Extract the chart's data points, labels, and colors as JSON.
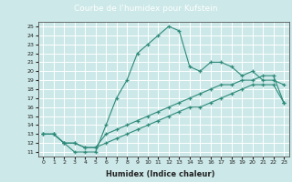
{
  "title": "Courbe de l'humidex pour Kufstein",
  "xlabel": "Humidex (Indice chaleur)",
  "bg_color": "#cce8e8",
  "grid_color": "#ffffff",
  "line_color": "#2e8b7a",
  "xlim": [
    -0.5,
    23.5
  ],
  "ylim": [
    10.5,
    25.5
  ],
  "xticks": [
    0,
    1,
    2,
    3,
    4,
    5,
    6,
    7,
    8,
    9,
    10,
    11,
    12,
    13,
    14,
    15,
    16,
    17,
    18,
    19,
    20,
    21,
    22,
    23
  ],
  "yticks": [
    11,
    12,
    13,
    14,
    15,
    16,
    17,
    18,
    19,
    20,
    21,
    22,
    23,
    24,
    25
  ],
  "line1_x": [
    0,
    1,
    2,
    3,
    4,
    5,
    6,
    7,
    8,
    9,
    10,
    11,
    12,
    13,
    14,
    15,
    16,
    17,
    18,
    19,
    20,
    21,
    22,
    23
  ],
  "line1_y": [
    13,
    13,
    12,
    11,
    11,
    11,
    14,
    17,
    19,
    22,
    23,
    24,
    25,
    24.5,
    20.5,
    20,
    21,
    21,
    20.5,
    19.5,
    20,
    19,
    19,
    18.5
  ],
  "line2_x": [
    0,
    1,
    2,
    3,
    4,
    5,
    6,
    7,
    8,
    9,
    10,
    11,
    12,
    13,
    14,
    15,
    16,
    17,
    18,
    19,
    20,
    21,
    22,
    23
  ],
  "line2_y": [
    13,
    13,
    12,
    12,
    11.5,
    11.5,
    13,
    13.5,
    14,
    14.5,
    15,
    15.5,
    16,
    16.5,
    17,
    17.5,
    18,
    18.5,
    18.5,
    19,
    19,
    19.5,
    19.5,
    16.5
  ],
  "line3_x": [
    0,
    1,
    2,
    3,
    4,
    5,
    6,
    7,
    8,
    9,
    10,
    11,
    12,
    13,
    14,
    15,
    16,
    17,
    18,
    19,
    20,
    21,
    22,
    23
  ],
  "line3_y": [
    13,
    13,
    12,
    12,
    11.5,
    11.5,
    12,
    12.5,
    13,
    13.5,
    14,
    14.5,
    15,
    15.5,
    16,
    16,
    16.5,
    17,
    17.5,
    18,
    18.5,
    18.5,
    18.5,
    16.5
  ],
  "title_bg": "#4a9090",
  "title_color": "#ffffff"
}
